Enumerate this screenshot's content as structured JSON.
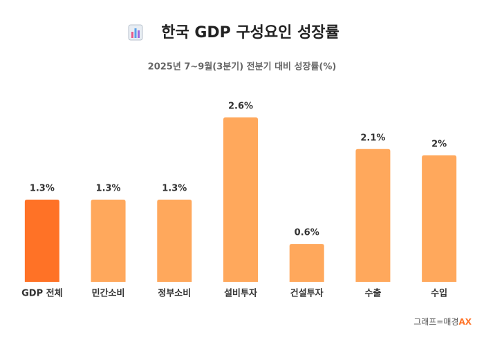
{
  "chart_data": {
    "type": "bar",
    "title": "한국 GDP 구성요인 성장률",
    "subtitle": "2025년 7~9월(3분기) 전분기 대비 성장률(%)",
    "categories": [
      "GDP 전체",
      "민간소비",
      "정부소비",
      "설비투자",
      "건설투자",
      "수출",
      "수입"
    ],
    "values": [
      1.3,
      1.3,
      1.3,
      2.6,
      0.6,
      2.1,
      2
    ],
    "value_labels": [
      "1.3%",
      "1.3%",
      "1.3%",
      "2.6%",
      "0.6%",
      "2.1%",
      "2%"
    ],
    "colors": [
      "#ff7226",
      "#ffa85c",
      "#ffa85c",
      "#ffa85c",
      "#ffa85c",
      "#ffa85c",
      "#ffa85c"
    ],
    "source": {
      "text": "그래프=매경",
      "brand": "AX"
    }
  }
}
